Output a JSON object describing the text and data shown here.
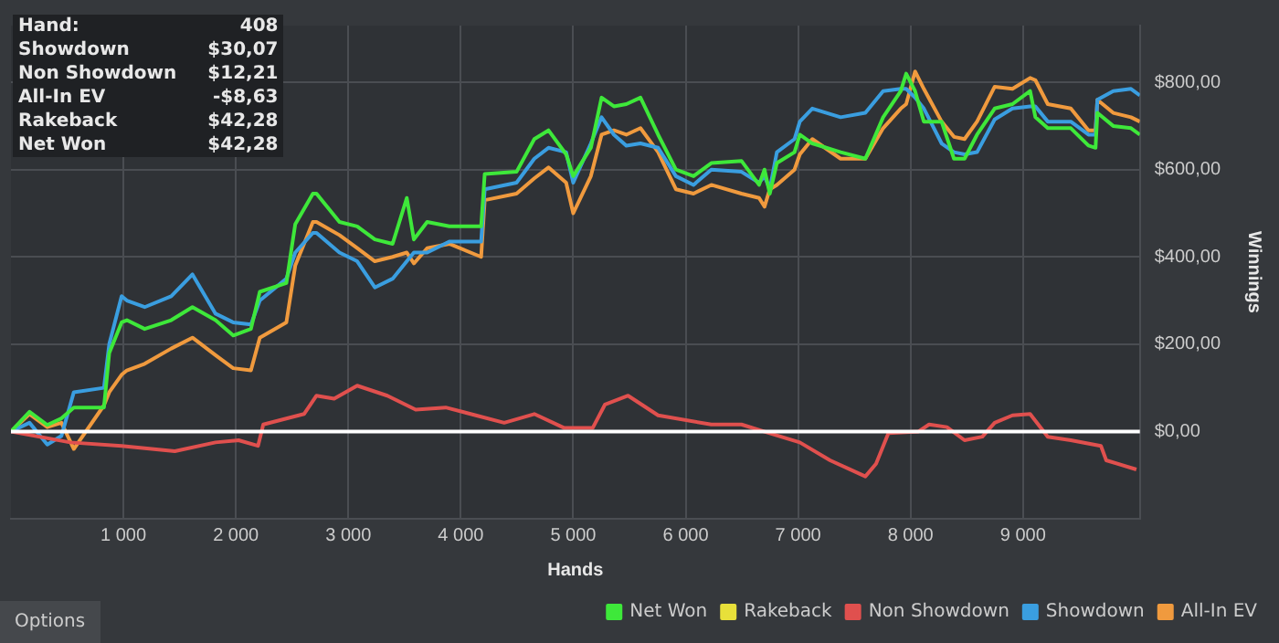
{
  "chart_data": {
    "type": "line",
    "xlabel": "Hands",
    "ylabel": "Winnings",
    "x": [
      0,
      165,
      323,
      449,
      559,
      827,
      874,
      984,
      1031,
      1189,
      1425,
      1614,
      1819,
      1976,
      2134,
      2213,
      2449,
      2528,
      2685,
      2717,
      2921,
      3079,
      3236,
      3394,
      3520,
      3583,
      3701,
      3898,
      4181,
      4213,
      4496,
      4654,
      4780,
      4937,
      5000,
      5157,
      5252,
      5362,
      5472,
      5598,
      5755,
      5913,
      6070,
      6228,
      6496,
      6653,
      6701,
      6748,
      6811,
      6968,
      7015,
      7126,
      7378,
      7598,
      7756,
      7913,
      7961,
      8040,
      8118,
      8276,
      8386,
      8480,
      8591,
      8748,
      8906,
      9063,
      9110,
      9220,
      9425,
      9582,
      9645,
      9661,
      9802,
      9960,
      10039
    ],
    "series": [
      {
        "name": "Net Won",
        "color": "#3ee83a",
        "values": [
          0,
          45,
          15,
          30,
          55,
          55,
          180,
          250,
          255,
          235,
          255,
          285,
          255,
          220,
          235,
          320,
          340,
          475,
          545,
          545,
          480,
          470,
          440,
          430,
          535,
          440,
          480,
          470,
          470,
          590,
          595,
          670,
          690,
          635,
          585,
          650,
          765,
          745,
          750,
          765,
          680,
          600,
          585,
          615,
          620,
          565,
          600,
          545,
          615,
          640,
          680,
          660,
          640,
          625,
          720,
          780,
          820,
          780,
          710,
          710,
          625,
          625,
          680,
          740,
          750,
          780,
          720,
          695,
          695,
          655,
          650,
          730,
          700,
          695,
          680
        ]
      },
      {
        "name": "Rakeback",
        "color": "#e8e03a",
        "values": [
          null,
          null,
          null,
          null,
          null,
          null,
          null,
          null,
          null,
          null,
          null,
          null,
          null,
          null,
          null,
          null,
          null,
          null,
          null,
          null,
          null,
          null,
          null,
          null,
          null,
          null,
          null,
          null,
          null,
          null,
          null,
          null,
          null,
          null,
          null,
          null,
          null,
          null,
          null,
          null,
          null,
          null,
          null,
          null,
          null,
          null,
          null,
          null,
          null,
          null,
          null,
          null,
          null,
          null,
          null,
          null,
          null,
          null,
          null,
          null,
          null,
          null,
          null,
          null,
          null,
          null,
          null,
          null,
          null,
          null,
          null,
          null,
          null,
          null,
          null
        ]
      },
      {
        "name": "Non Showdown",
        "color": "#e0504e",
        "x": [
          0,
          528,
          984,
          1457,
          1819,
          2024,
          2197,
          2244,
          2606,
          2717,
          2874,
          3079,
          3347,
          3599,
          3866,
          4134,
          4386,
          4654,
          4921,
          5173,
          5283,
          5488,
          5755,
          6228,
          6496,
          6748,
          7015,
          7284,
          7598,
          7693,
          7803,
          8071,
          8165,
          8323,
          8480,
          8638,
          8748,
          8906,
          9063,
          9220,
          9425,
          9693,
          9740,
          10008
        ],
        "values": [
          0,
          -25,
          -33,
          -45,
          -25,
          -20,
          -33,
          16,
          40,
          82,
          75,
          105,
          82,
          50,
          55,
          37,
          20,
          40,
          8,
          8,
          62,
          82,
          37,
          16,
          16,
          -4,
          -25,
          -66,
          -103,
          -74,
          -4,
          0,
          16,
          10,
          -20,
          -12,
          20,
          37,
          40,
          -12,
          -20,
          -33,
          -66,
          -87
        ]
      },
      {
        "name": "Showdown",
        "color": "#3a9ee0",
        "values": [
          0,
          20,
          -30,
          -10,
          90,
          100,
          200,
          310,
          300,
          285,
          310,
          360,
          270,
          250,
          245,
          300,
          350,
          410,
          455,
          455,
          410,
          390,
          330,
          350,
          390,
          410,
          410,
          435,
          435,
          555,
          570,
          625,
          650,
          640,
          570,
          660,
          720,
          680,
          655,
          660,
          650,
          585,
          565,
          600,
          595,
          570,
          585,
          555,
          640,
          670,
          710,
          740,
          720,
          730,
          780,
          785,
          785,
          765,
          740,
          660,
          640,
          635,
          640,
          715,
          740,
          745,
          745,
          710,
          710,
          680,
          680,
          760,
          780,
          785,
          770
        ]
      },
      {
        "name": "All-In EV",
        "color": "#f09a3e",
        "values": [
          0,
          40,
          10,
          20,
          -40,
          60,
          90,
          130,
          140,
          155,
          190,
          215,
          175,
          145,
          140,
          215,
          250,
          380,
          480,
          480,
          450,
          420,
          390,
          400,
          410,
          385,
          420,
          430,
          400,
          530,
          545,
          580,
          605,
          570,
          500,
          585,
          680,
          690,
          680,
          695,
          640,
          555,
          545,
          565,
          545,
          535,
          515,
          555,
          565,
          600,
          635,
          670,
          625,
          625,
          695,
          740,
          750,
          825,
          785,
          710,
          675,
          670,
          710,
          790,
          785,
          810,
          805,
          750,
          740,
          690,
          690,
          760,
          730,
          720,
          710
        ]
      }
    ],
    "xlim": [
      0,
      10039
    ],
    "xticks": [
      {
        "value": 1000,
        "label": "1 000"
      },
      {
        "value": 2000,
        "label": "2 000"
      },
      {
        "value": 3000,
        "label": "3 000"
      },
      {
        "value": 4000,
        "label": "4 000"
      },
      {
        "value": 5000,
        "label": "5 000"
      },
      {
        "value": 6000,
        "label": "6 000"
      },
      {
        "value": 7000,
        "label": "7 000"
      },
      {
        "value": 8000,
        "label": "8 000"
      },
      {
        "value": 9000,
        "label": "9 000"
      }
    ],
    "ylim": [
      -200,
      930
    ],
    "yticks": [
      {
        "value": 0,
        "label": "$0,00"
      },
      {
        "value": 200,
        "label": "$200,00"
      },
      {
        "value": 400,
        "label": "$400,00"
      },
      {
        "value": 600,
        "label": "$600,00"
      },
      {
        "value": 800,
        "label": "$800,00"
      }
    ],
    "ref_lines": [
      {
        "axis": "y",
        "value": 0,
        "color": "#ffffff"
      }
    ],
    "grid": true,
    "legend": "bottom",
    "marker": "none",
    "line_style": "solid",
    "annotations": [
      "Hand:",
      "408",
      "Showdown",
      "$30,07",
      "Non Showdown",
      "$12,21",
      "All-In EV",
      "-$8,63",
      "Rakeback",
      "$42,28",
      "Net Won",
      "$42,28",
      "Options"
    ]
  }
}
